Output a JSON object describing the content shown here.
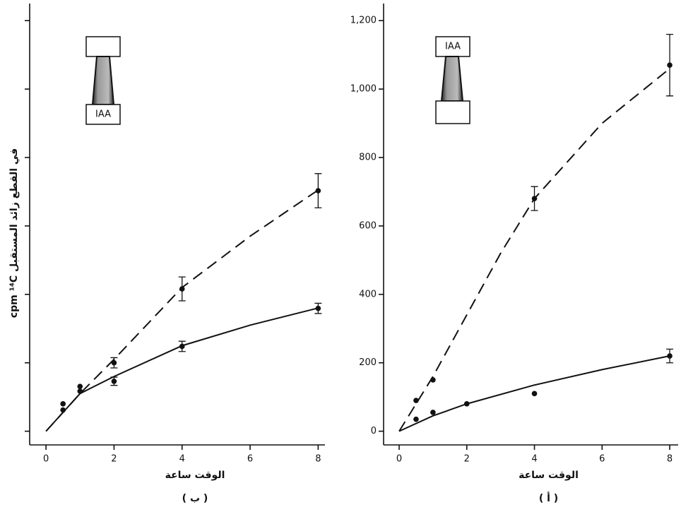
{
  "chart_data": [
    {
      "type": "scatter",
      "panel_label": "( ب )",
      "xlabel": "الوقت ساعة",
      "ylabel": "cpm ¹⁴C في القطع زائد المستقبل",
      "inset_label": "IAA",
      "inset_position": "bottom",
      "xlim": [
        -0.48,
        8.2
      ],
      "xticks": [
        0,
        2,
        4,
        6,
        8
      ],
      "ylim": [
        -40,
        1250
      ],
      "yticks": [
        0,
        200,
        400,
        600,
        800,
        1000,
        1200
      ],
      "ytick_labels": false,
      "series": [
        {
          "color": "#111111",
          "dash": true,
          "x": [
            0.5,
            1,
            2,
            4,
            8
          ],
          "values": [
            80,
            131,
            200,
            416,
            703
          ],
          "errors": [
            null,
            null,
            15,
            35,
            50
          ],
          "fit_x": [
            0,
            1,
            2,
            4,
            6,
            8
          ],
          "fit": [
            0,
            110,
            210,
            420,
            570,
            705
          ]
        },
        {
          "color": "#111111",
          "dash": false,
          "x": [
            0.5,
            1,
            2,
            4,
            8
          ],
          "values": [
            62,
            117,
            146,
            248,
            359
          ],
          "errors": [
            null,
            null,
            12,
            15,
            15
          ],
          "fit_x": [
            0,
            1,
            2,
            4,
            6,
            8
          ],
          "fit": [
            0,
            110,
            160,
            250,
            310,
            360
          ]
        }
      ]
    },
    {
      "type": "scatter",
      "panel_label": "( أ )",
      "xlabel": "الوقت ساعة",
      "inset_label": "IAA",
      "inset_position": "top",
      "xlim": [
        -0.46,
        8.25
      ],
      "xticks": [
        0,
        2,
        4,
        6,
        8
      ],
      "ylim": [
        -40,
        1250
      ],
      "yticks": [
        0,
        200,
        400,
        600,
        800,
        {
          "value": 1000,
          "label": "1,000"
        },
        {
          "value": 1200,
          "label": "1,200"
        }
      ],
      "ytick_labels": true,
      "series": [
        {
          "color": "#111111",
          "dash": true,
          "x": [
            0.5,
            1,
            4,
            8
          ],
          "values": [
            90,
            150,
            680,
            1070
          ],
          "errors": [
            null,
            null,
            35,
            90
          ],
          "fit_x": [
            0,
            1,
            2,
            3,
            4,
            6,
            8
          ],
          "fit": [
            0,
            160,
            340,
            520,
            680,
            900,
            1060
          ]
        },
        {
          "color": "#111111",
          "dash": false,
          "x": [
            0.5,
            1,
            2,
            4,
            8
          ],
          "values": [
            35,
            55,
            80,
            110,
            220
          ],
          "errors": [
            null,
            null,
            null,
            null,
            20
          ],
          "fit_x": [
            0,
            1,
            2,
            4,
            6,
            8
          ],
          "fit": [
            0,
            45,
            80,
            135,
            180,
            220
          ]
        }
      ]
    }
  ]
}
